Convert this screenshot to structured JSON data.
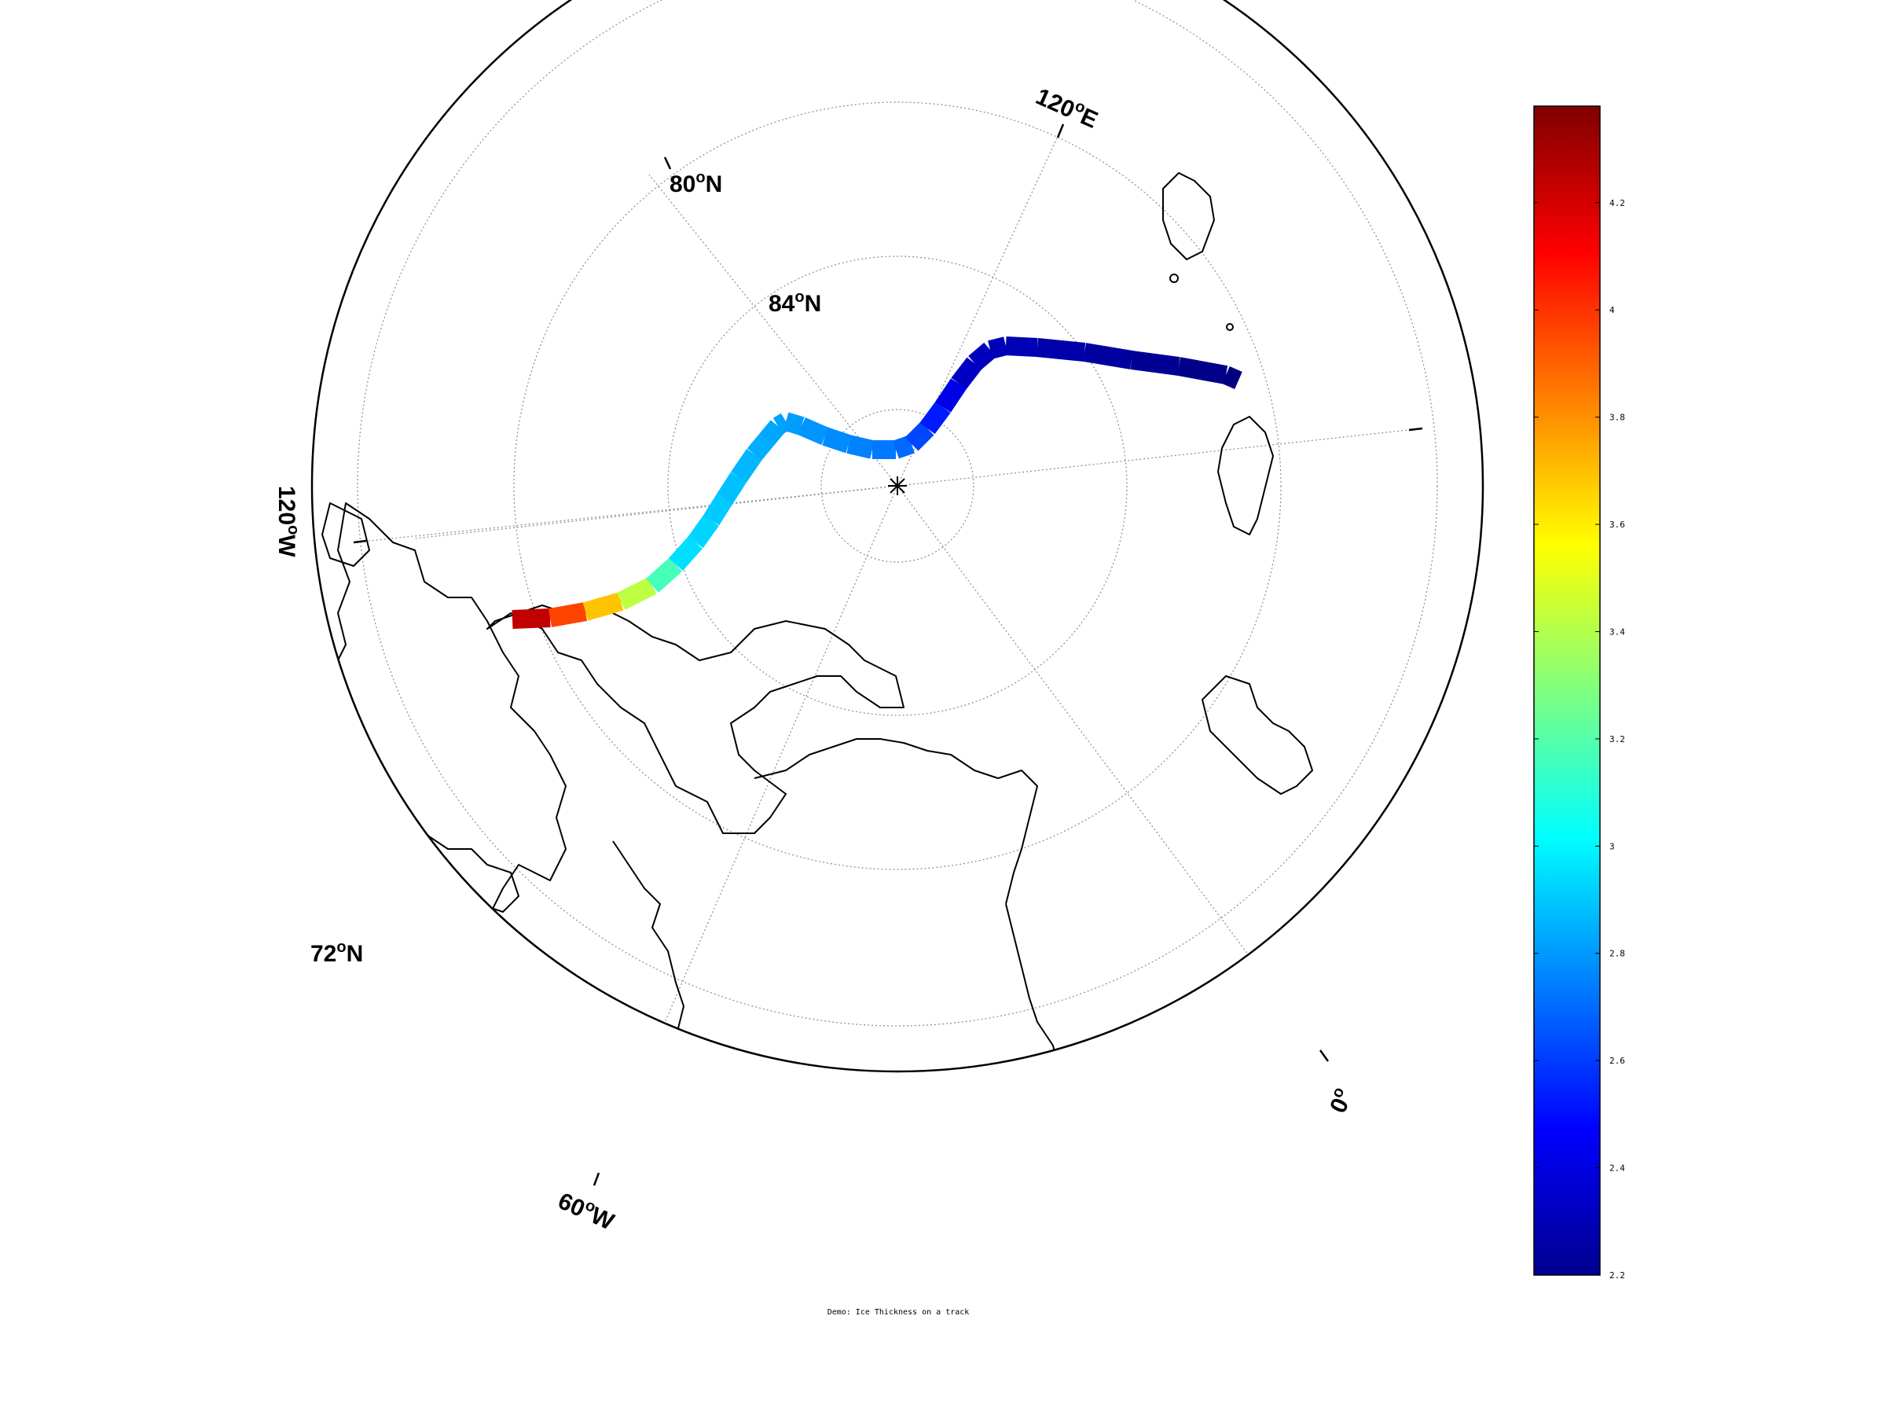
{
  "figure": {
    "caption": "Demo: Ice Thickness on a track"
  },
  "map": {
    "projection": "polar stereographic (north)",
    "grid": "on",
    "longitude_labels": [
      {
        "lon": 120,
        "text": "120",
        "hemi": "E"
      },
      {
        "lon": -120,
        "text": "120",
        "hemi": "W"
      },
      {
        "lon": -60,
        "text": "60",
        "hemi": "W"
      },
      {
        "lon": 0,
        "text": "0",
        "hemi": ""
      }
    ],
    "latitude_labels": [
      {
        "lat": 80,
        "text": "80",
        "hemi": "N"
      },
      {
        "lat": 84,
        "text": "84",
        "hemi": "N"
      },
      {
        "lat": 72,
        "text": "72",
        "hemi": "N"
      }
    ],
    "pole_marker": "north-pole-asterisk",
    "coastline_color": "#000000"
  },
  "chart_data": {
    "type": "scatter",
    "description_units": "ice thickness along a track",
    "colormap": "jet",
    "clim": [
      2.2,
      4.38
    ],
    "track": {
      "thickness_start": 4.38,
      "thickness_end": 2.2
    },
    "colorbar": {
      "ticks": [
        "2.2",
        "2.4",
        "2.6",
        "2.8",
        "3",
        "3.2",
        "3.4",
        "3.6",
        "3.8",
        "4",
        "4.2"
      ]
    }
  }
}
